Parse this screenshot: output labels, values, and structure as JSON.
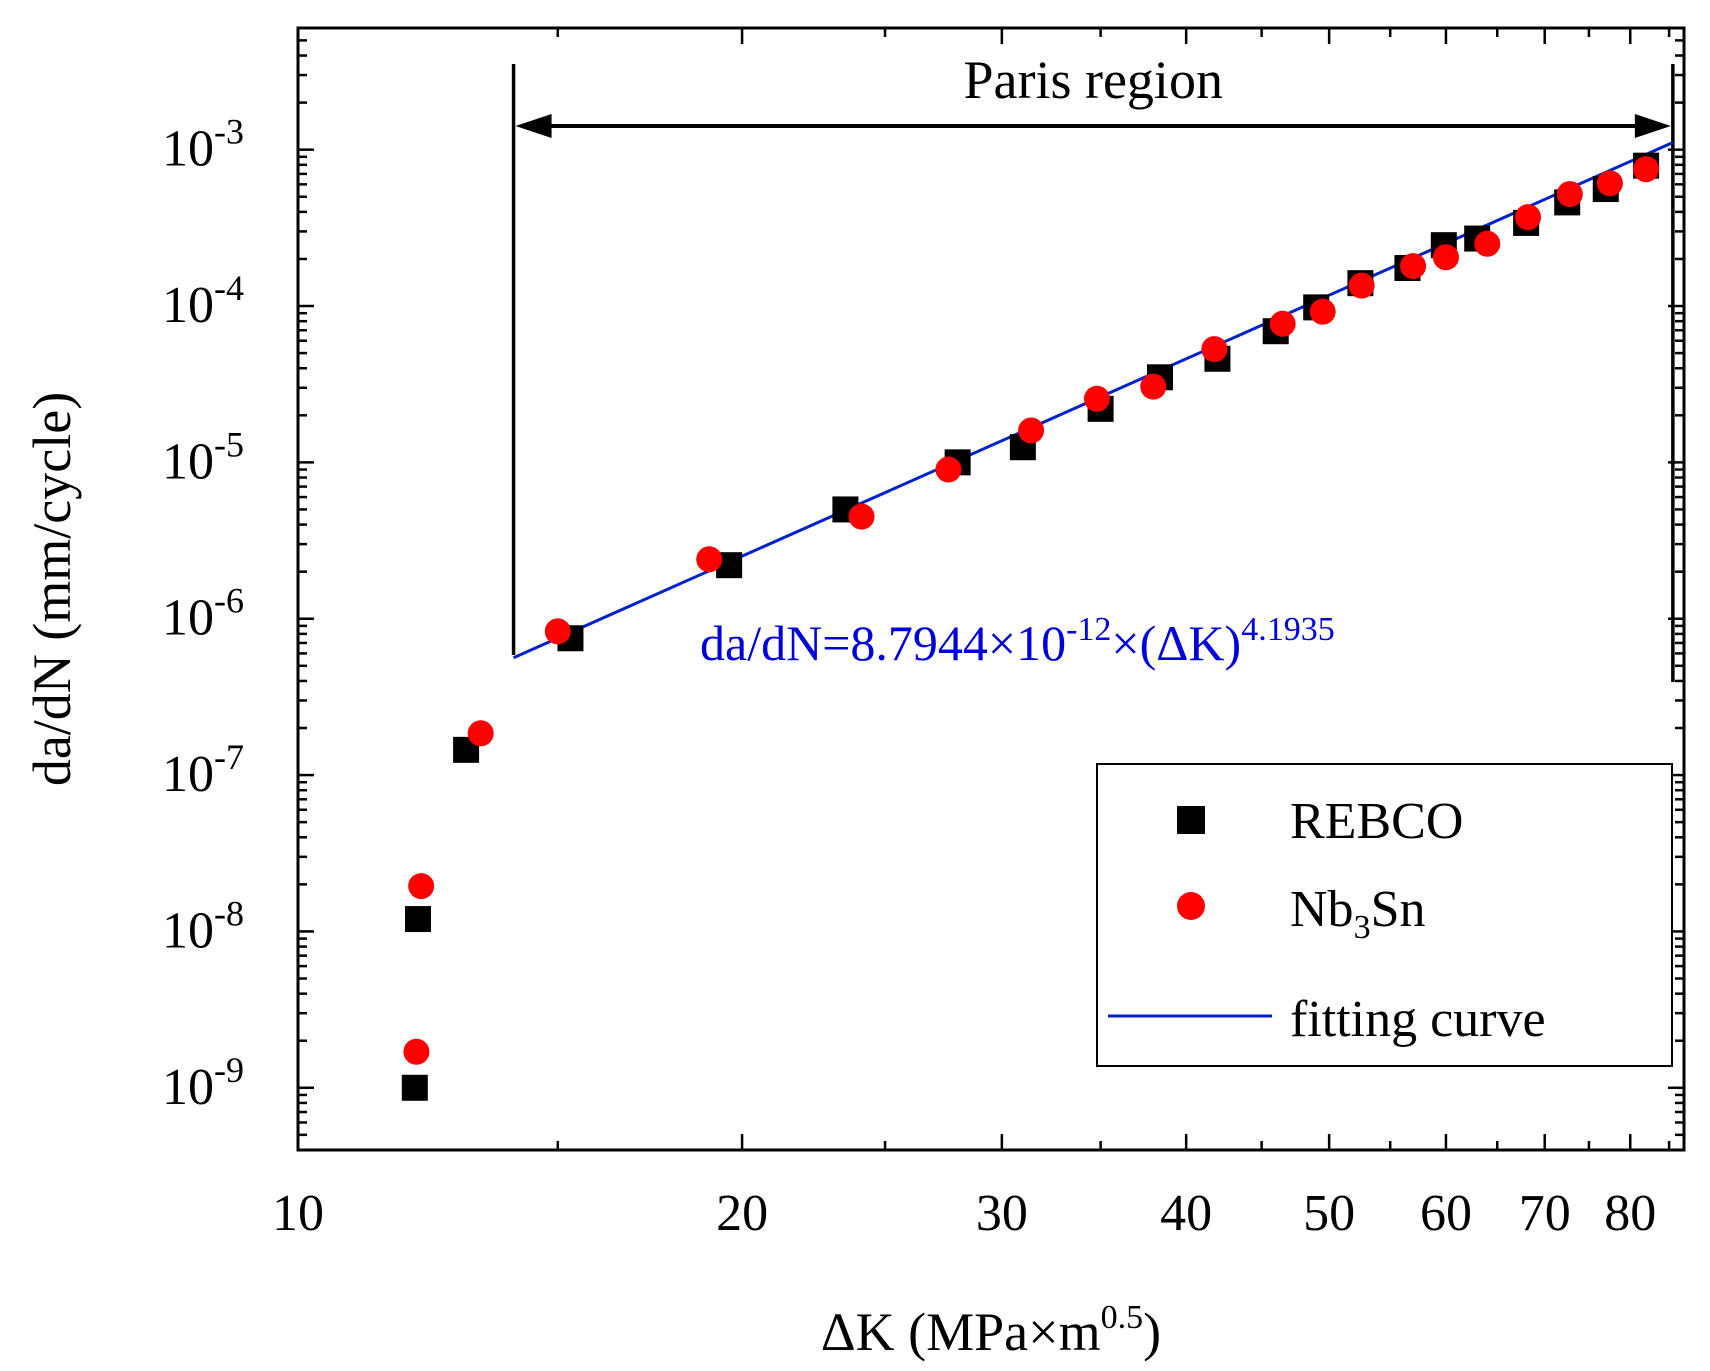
{
  "chart_data": {
    "type": "scatter",
    "title": "",
    "xlabel": "ΔK (MPa×m",
    "xlabel_sup": "0.5",
    "xlabel_tail": ")",
    "ylabel": "da/dN (mm/cycle)",
    "x_scale": "log",
    "y_scale": "log",
    "xlim": [
      10,
      87
    ],
    "ylim": [
      4e-10,
      0.006
    ],
    "x_ticks": [
      {
        "value": 10,
        "label": "10"
      },
      {
        "value": 20,
        "label": "20"
      },
      {
        "value": 30,
        "label": "30"
      },
      {
        "value": 40,
        "label": "40"
      },
      {
        "value": 50,
        "label": "50"
      },
      {
        "value": 60,
        "label": "60"
      },
      {
        "value": 70,
        "label": "70"
      },
      {
        "value": 80,
        "label": "80"
      }
    ],
    "y_ticks": [
      {
        "value": 1e-09,
        "base": "10",
        "exp": "-9"
      },
      {
        "value": 1e-08,
        "base": "10",
        "exp": "-8"
      },
      {
        "value": 1e-07,
        "base": "10",
        "exp": "-7"
      },
      {
        "value": 1e-06,
        "base": "10",
        "exp": "-6"
      },
      {
        "value": 1e-05,
        "base": "10",
        "exp": "-5"
      },
      {
        "value": 0.0001,
        "base": "10",
        "exp": "-4"
      },
      {
        "value": 0.001,
        "base": "10",
        "exp": "-3"
      }
    ],
    "series": [
      {
        "name": "REBCO",
        "marker": "square",
        "color": "#000000",
        "points": [
          [
            12.0,
            1e-09
          ],
          [
            12.06,
            1.2e-08
          ],
          [
            13.0,
            1.45e-07
          ],
          [
            15.3,
            7.5e-07
          ],
          [
            19.6,
            2.2e-06
          ],
          [
            23.5,
            5e-06
          ],
          [
            28.0,
            1e-05
          ],
          [
            31.0,
            1.25e-05
          ],
          [
            35.0,
            2.2e-05
          ],
          [
            38.4,
            3.5e-05
          ],
          [
            42.0,
            4.6e-05
          ],
          [
            46.0,
            6.9e-05
          ],
          [
            49.0,
            9.8e-05
          ],
          [
            52.5,
            0.00014
          ],
          [
            56.5,
            0.000175
          ],
          [
            59.8,
            0.000245
          ],
          [
            63.0,
            0.00027
          ],
          [
            68.0,
            0.00034
          ],
          [
            72.5,
            0.00046
          ],
          [
            77.0,
            0.00056
          ],
          [
            82.0,
            0.00079
          ]
        ]
      },
      {
        "name": "Nb3Sn",
        "legend_base": "Nb",
        "legend_sub": "3",
        "legend_tail": "Sn",
        "marker": "circle",
        "color": "#ff0000",
        "points": [
          [
            12.03,
            1.7e-09
          ],
          [
            12.12,
            1.95e-08
          ],
          [
            13.3,
            1.85e-07
          ],
          [
            15.0,
            8.3e-07
          ],
          [
            19.0,
            2.4e-06
          ],
          [
            24.1,
            4.5e-06
          ],
          [
            27.6,
            9e-06
          ],
          [
            31.4,
            1.6e-05
          ],
          [
            34.8,
            2.55e-05
          ],
          [
            38.0,
            3.05e-05
          ],
          [
            41.8,
            5.3e-05
          ],
          [
            46.5,
            7.7e-05
          ],
          [
            49.5,
            9.2e-05
          ],
          [
            52.6,
            0.000135
          ],
          [
            57.0,
            0.00018
          ],
          [
            60.0,
            0.000205
          ],
          [
            64.0,
            0.00025
          ],
          [
            68.2,
            0.00037
          ],
          [
            72.8,
            0.00052
          ],
          [
            77.5,
            0.00061
          ],
          [
            82.0,
            0.00075
          ]
        ]
      }
    ],
    "fit": {
      "name": "fitting curve",
      "color": "#0022cc",
      "coefficient": 8.7944e-12,
      "exponent": 4.1935,
      "x_range": [
        14.0,
        85.5
      ],
      "equation_base": "da/dN=8.7944×10",
      "equation_exp1": "-12",
      "equation_mid": "×(ΔK)",
      "equation_exp2": "4.1935"
    },
    "annotation": {
      "label": "Paris region",
      "x_start": 14.0,
      "x_end": 85.5
    },
    "legend": {
      "position": "lower-right"
    }
  }
}
